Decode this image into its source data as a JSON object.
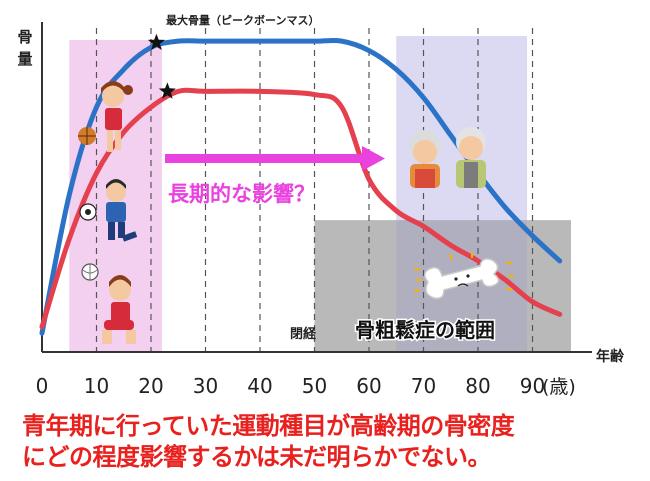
{
  "chart_data": {
    "type": "line",
    "x_ticks": [
      "0",
      "10",
      "20",
      "30",
      "40",
      "50",
      "60",
      "70",
      "80",
      "90"
    ],
    "x_unit": "(歳)",
    "x_label": "年齢",
    "y_label": "骨量",
    "xlim": [
      0,
      100
    ],
    "ylim": [
      0,
      100
    ],
    "grid": "vertical dashed at every 10",
    "series": [
      {
        "color": "#2b73c6",
        "x": [
          0,
          5,
          10,
          15,
          20,
          25,
          30,
          40,
          50,
          55,
          60,
          65,
          70,
          75,
          80,
          85,
          90,
          95
        ],
        "y": [
          6,
          50,
          78,
          90,
          97,
          99,
          99,
          99,
          99,
          99,
          96,
          90,
          81,
          69,
          57,
          46,
          37,
          29
        ]
      },
      {
        "color": "#e5404e",
        "x": [
          0,
          5,
          10,
          15,
          20,
          25,
          30,
          40,
          50,
          55,
          60,
          65,
          70,
          75,
          80,
          85,
          90,
          95
        ],
        "y": [
          8,
          36,
          57,
          70,
          78,
          83,
          83,
          83,
          82,
          78,
          55,
          45,
          40,
          34,
          29,
          23,
          16,
          12
        ]
      }
    ],
    "annotations": {
      "peak_label": "最大骨量（ピークボーンマス）",
      "arrow_label": "長期的な影響？",
      "menopause_label": "閉経",
      "osteoporosis_label": "骨粗鬆症の範囲"
    },
    "regions": {
      "youth_band": {
        "x": [
          5,
          22
        ],
        "color": "#f3cff0"
      },
      "elderly_band": {
        "x": [
          65,
          89
        ],
        "color": "#dcdaf3"
      },
      "osteoporosis_range": {
        "x": [
          50,
          100
        ],
        "y_max": 42,
        "color": "#b9b9b9"
      }
    }
  },
  "note": {
    "line1": "青年期に行っていた運動種目が高齢期の骨密度",
    "line2": "にどの程度影響するかは未だ明らかでない。"
  },
  "colors": {
    "arrow": "#ea42de",
    "peak_star": "#111111",
    "note_text": "#e8201e"
  },
  "icons": [
    "basketball-girl-icon",
    "soccer-boy-icon",
    "volleyball-girl-icon",
    "elderly-couple-icon",
    "cracked-bone-icon"
  ]
}
